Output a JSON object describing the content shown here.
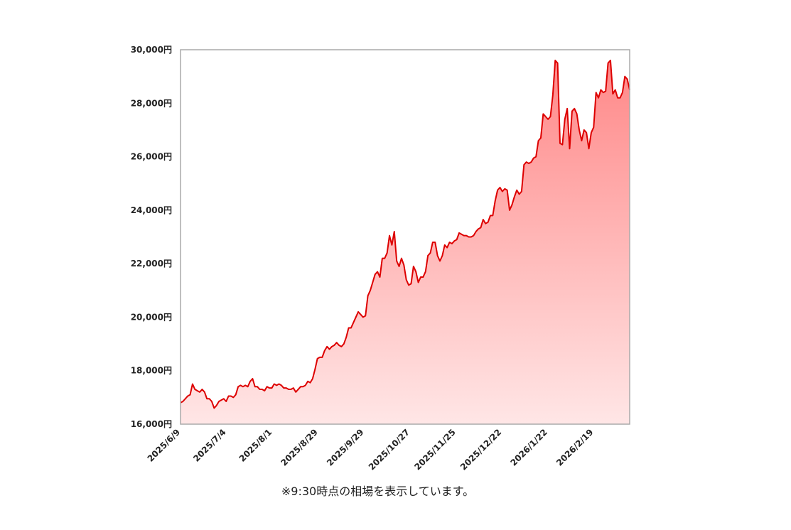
{
  "colors": {
    "line": "#dd0000",
    "fill_top": "#ff8888",
    "fill_bottom": "#ffe6e6",
    "frame": "#aaaaaa"
  },
  "footnote": "※9:30時点の相場を表示しています。",
  "chart_data": {
    "type": "area",
    "title": "",
    "xlabel": "",
    "ylabel": "",
    "ylim": [
      16000,
      30000
    ],
    "y_ticks": [
      "16,000円",
      "18,000円",
      "20,000円",
      "22,000円",
      "24,000円",
      "26,000円",
      "28,000円",
      "30,000円"
    ],
    "x_ticks": [
      "2025/6/9",
      "2025/7/4",
      "2025/8/1",
      "2025/8/29",
      "2025/9/29",
      "2025/10/27",
      "2025/11/25",
      "2025/12/22",
      "2026/1/22",
      "2026/2/19"
    ],
    "grid": false,
    "legend": "none",
    "series": [
      {
        "values": [
          16800,
          16850,
          16950,
          17050,
          17100,
          17500,
          17300,
          17250,
          17200,
          17300,
          17200,
          16950,
          16950,
          16850,
          16600,
          16700,
          16850,
          16900,
          16950,
          16850,
          17050,
          17050,
          17000,
          17100,
          17400,
          17450,
          17400,
          17450,
          17400,
          17600,
          17700,
          17400,
          17400,
          17300,
          17300,
          17250,
          17400,
          17350,
          17350,
          17500,
          17450,
          17500,
          17450,
          17350,
          17350,
          17300,
          17300,
          17350,
          17200,
          17300,
          17400,
          17400,
          17450,
          17600,
          17550,
          17700,
          18050,
          18450,
          18500,
          18500,
          18750,
          18900,
          18800,
          18900,
          18950,
          19050,
          18950,
          18900,
          19000,
          19250,
          19600,
          19600,
          19800,
          20000,
          20200,
          20100,
          20000,
          20050,
          20800,
          21000,
          21300,
          21600,
          21700,
          21500,
          22200,
          22200,
          22400,
          23050,
          22700,
          23200,
          22100,
          21900,
          22200,
          21950,
          21400,
          21200,
          21250,
          21900,
          21700,
          21300,
          21500,
          21500,
          21700,
          22300,
          22400,
          22800,
          22800,
          22300,
          22100,
          22300,
          22700,
          22600,
          22800,
          22750,
          22850,
          22900,
          23150,
          23100,
          23050,
          23050,
          23000,
          23000,
          23050,
          23200,
          23300,
          23350,
          23650,
          23500,
          23550,
          23800,
          23800,
          24350,
          24750,
          24850,
          24700,
          24800,
          24750,
          24000,
          24200,
          24500,
          24750,
          24600,
          24700,
          25700,
          25800,
          25750,
          25800,
          25950,
          26000,
          26600,
          26700,
          27600,
          27500,
          27400,
          27500,
          28300,
          29600,
          29500,
          26500,
          26450,
          27400,
          27800,
          26300,
          27700,
          27800,
          27600,
          27000,
          26600,
          27000,
          26900,
          26300,
          26900,
          27100,
          28400,
          28200,
          28500,
          28400,
          28450,
          29500,
          29600,
          28350,
          28500,
          28200,
          28200,
          28400,
          29000,
          28900,
          28500
        ]
      }
    ]
  }
}
